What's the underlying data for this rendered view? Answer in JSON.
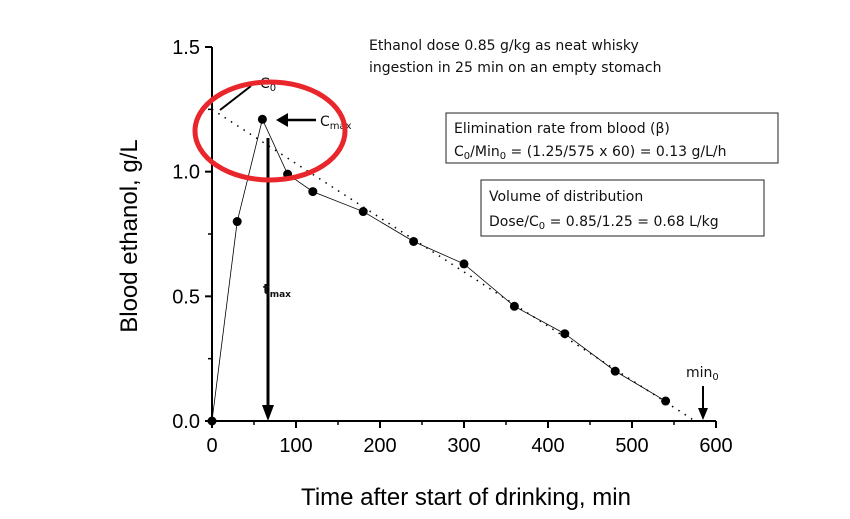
{
  "chart_data": {
    "type": "line",
    "xlabel": "Time after start of drinking, min",
    "ylabel": "Blood ethanol, g/L",
    "xlim": [
      0,
      600
    ],
    "ylim": [
      0,
      1.5
    ],
    "xticks": [
      "0",
      "100",
      "200",
      "300",
      "400",
      "500",
      "600"
    ],
    "yticks": [
      "0.0",
      "0.5",
      "1.0",
      "1.5"
    ],
    "grid": false,
    "series": [
      {
        "x": [
          0,
          30,
          60,
          90,
          120,
          180,
          240,
          300,
          360,
          420,
          480,
          540
        ],
        "y": [
          0,
          0.8,
          1.21,
          0.99,
          0.92,
          0.84,
          0.72,
          0.63,
          0.46,
          0.35,
          0.2,
          0.08
        ],
        "style": "solid line with filled circle markers"
      },
      {
        "x": [
          0,
          575
        ],
        "y": [
          1.25,
          0
        ],
        "style": "dotted back-extrapolation line"
      }
    ],
    "annotations": {
      "dose_line1": "Ethanol dose 0.85 g/kg as neat whisky",
      "dose_line2": "ingestion in 25 min on an empty stomach",
      "c0": [
        "C",
        "0"
      ],
      "cmax": [
        "C",
        "max"
      ],
      "tmax": [
        "t",
        "max"
      ],
      "min0": [
        "min",
        "0"
      ],
      "elimination_title": "Elimination rate from blood (β)",
      "elimination_formula": [
        "C",
        "0",
        "/Min",
        "0",
        " = (1.25/575 x 60) = 0.13 g/L/h"
      ],
      "volume_title": "Volume of distribution",
      "volume_formula": [
        "Dose/C",
        "0",
        " = 0.85/1.25 = 0.68 L/kg"
      ]
    },
    "colors": {
      "data": "#000000",
      "highlight_ellipse": "#e8262b"
    }
  }
}
